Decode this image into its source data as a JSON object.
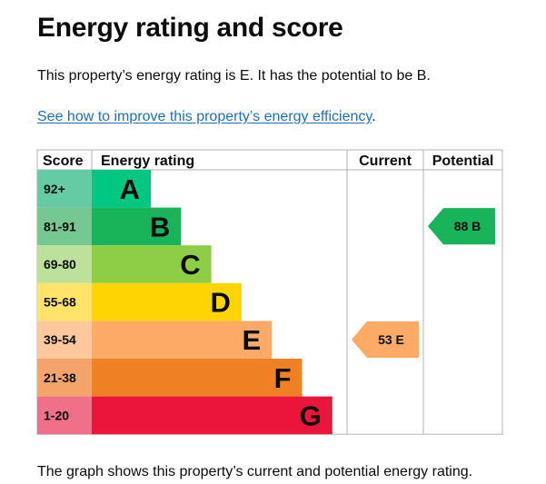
{
  "page": {
    "title": "Energy rating and score",
    "summary": "This property’s energy rating is E. It has the potential to be B.",
    "link_text": "See how to improve this property’s energy efficiency",
    "link_suffix": ".",
    "footer": "The graph shows this property’s current and potential energy rating."
  },
  "chart_data": {
    "type": "bar",
    "title": "Energy rating and score",
    "headers": {
      "score": "Score",
      "rating": "Energy rating",
      "current": "Current",
      "potential": "Potential"
    },
    "bands": [
      {
        "letter": "A",
        "range": "92+",
        "min": 92,
        "color": "#00c781",
        "score_bg": "#65cba4"
      },
      {
        "letter": "B",
        "range": "81-91",
        "min": 81,
        "color": "#19b459",
        "score_bg": "#75c88f"
      },
      {
        "letter": "C",
        "range": "69-80",
        "min": 69,
        "color": "#8dce46",
        "score_bg": "#bce19a"
      },
      {
        "letter": "D",
        "range": "55-68",
        "min": 55,
        "color": "#ffd500",
        "score_bg": "#ffe469"
      },
      {
        "letter": "E",
        "range": "39-54",
        "min": 39,
        "color": "#fcaa65",
        "score_bg": "#fdc89b"
      },
      {
        "letter": "F",
        "range": "21-38",
        "min": 21,
        "color": "#ef8023",
        "score_bg": "#f4a46a"
      },
      {
        "letter": "G",
        "range": "1-20",
        "min": 1,
        "color": "#e9153b",
        "score_bg": "#f0708a"
      }
    ],
    "current": {
      "score": 53,
      "band": "E",
      "label": "53 E",
      "color": "#fcaa65"
    },
    "potential": {
      "score": 88,
      "band": "B",
      "label": "88 B",
      "color": "#19b459"
    }
  }
}
